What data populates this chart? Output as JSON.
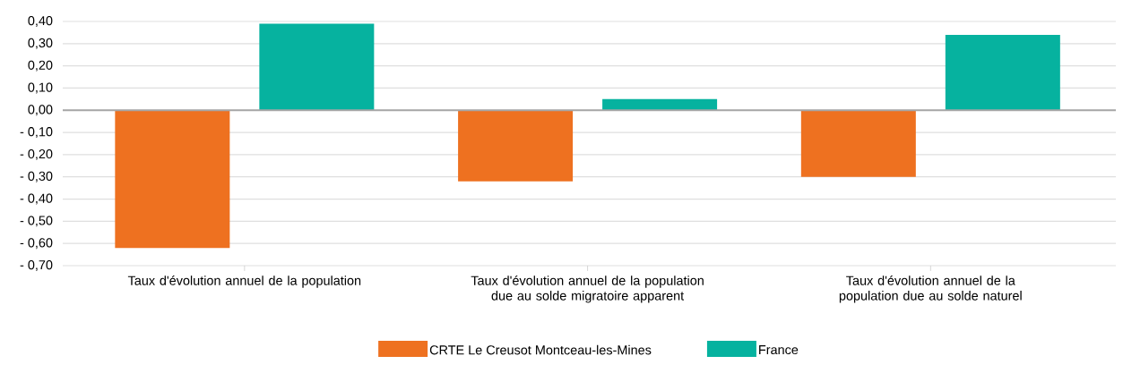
{
  "chart_data": {
    "type": "bar",
    "categories": [
      "Taux d'évolution annuel de la population",
      "Taux d'évolution annuel de la population due au solde migratoire apparent",
      "Taux d'évolution annuel de la population due au solde naturel"
    ],
    "series": [
      {
        "name": "CRTE Le Creusot Montceau-les-Mines",
        "color": "#ee7120",
        "values": [
          -0.62,
          -0.32,
          -0.3
        ]
      },
      {
        "name": "France",
        "color": "#06b29f",
        "values": [
          0.39,
          0.05,
          0.34
        ]
      }
    ],
    "ylim": [
      -0.7,
      0.4
    ],
    "yticks": [
      {
        "value": -0.7,
        "label": "- 0,70"
      },
      {
        "value": -0.6,
        "label": "- 0,60"
      },
      {
        "value": -0.5,
        "label": "- 0,50"
      },
      {
        "value": -0.4,
        "label": "- 0,40"
      },
      {
        "value": -0.3,
        "label": "- 0,30"
      },
      {
        "value": -0.2,
        "label": "- 0,20"
      },
      {
        "value": -0.1,
        "label": "- 0,10"
      },
      {
        "value": 0,
        "label": "0,00"
      },
      {
        "value": 0.1,
        "label": "0,10"
      },
      {
        "value": 0.2,
        "label": "0,20"
      },
      {
        "value": 0.3,
        "label": "0,30"
      },
      {
        "value": 0.4,
        "label": "0,40"
      }
    ],
    "grid": "y",
    "legend": "bottom"
  }
}
